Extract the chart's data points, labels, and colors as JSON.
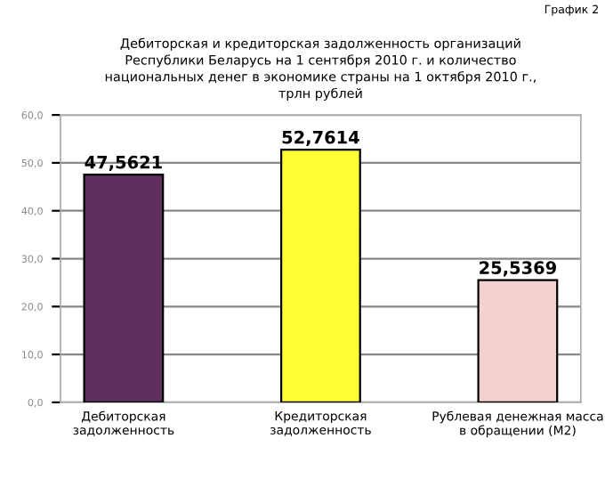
{
  "chart_data": {
    "type": "bar",
    "title": "Дебиторская и кредиторская задолженность организаций\nРеспублики Беларусь на 1 сентября 2010 г. и количество\nнациональных денег в экономике страны на 1 октября 2010 г.,\nтрлн рублей",
    "categories": [
      "Дебиторская\nзадолженность",
      "Кредиторская\nзадолженность",
      "Рублевая денежная масса\nв обращении (M2)"
    ],
    "values": [
      47.5621,
      52.7614,
      25.5369
    ],
    "colors": [
      "#5e2f5f",
      "#ffff33",
      "#f4d0d0"
    ],
    "value_labels": [
      "47,5621",
      "52,7614",
      "25,5369"
    ],
    "ylim": [
      0,
      60
    ],
    "yticks": [
      {
        "value": 0,
        "label": "0,0"
      },
      {
        "value": 10,
        "label": "10,0"
      },
      {
        "value": 20,
        "label": "20,0"
      },
      {
        "value": 30,
        "label": "30,0"
      },
      {
        "value": 40,
        "label": "40,0"
      },
      {
        "value": 50,
        "label": "50,0"
      },
      {
        "value": 60,
        "label": "60,0"
      }
    ],
    "grid": "y",
    "annotations": [
      "График 2"
    ]
  }
}
